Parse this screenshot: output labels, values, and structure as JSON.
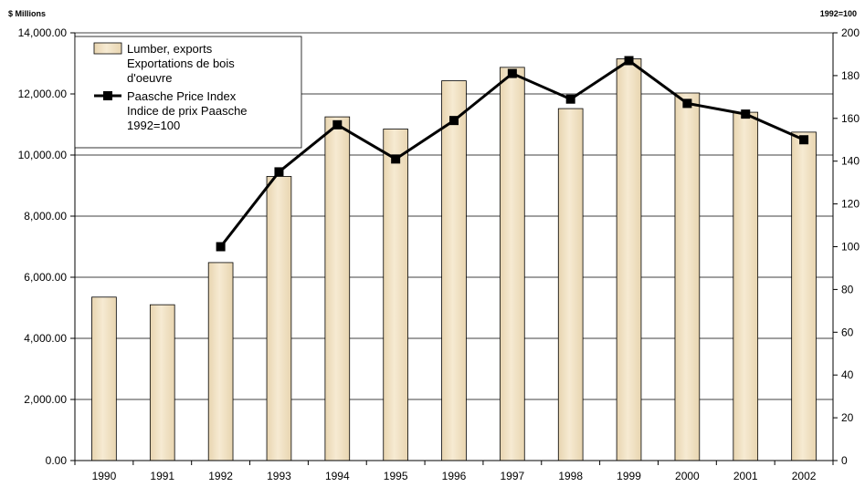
{
  "chart_data": {
    "type": "bar",
    "left_axis_title": "$ Millions",
    "right_axis_title": "1992=100",
    "categories": [
      "1990",
      "1991",
      "1992",
      "1993",
      "1994",
      "1995",
      "1996",
      "1997",
      "1998",
      "1999",
      "2000",
      "2001",
      "2002"
    ],
    "series": [
      {
        "name": [
          "Lumber, exports",
          "Exportations de bois",
          "d'oeuvre"
        ],
        "type": "bar",
        "axis": "left",
        "values": [
          5350,
          5100,
          6480,
          9300,
          11250,
          10850,
          12430,
          12870,
          11520,
          13150,
          12030,
          11400,
          10750
        ]
      },
      {
        "name": [
          "Paasche Price Index",
          "Indice de prix Paasche",
          "1992=100"
        ],
        "type": "line",
        "axis": "right",
        "values": [
          null,
          null,
          100,
          135,
          157,
          141,
          159,
          181,
          169,
          187,
          167,
          162,
          150
        ]
      }
    ],
    "left_axis": {
      "min": 0,
      "max": 14000,
      "step": 2000,
      "ticks": [
        "0.00",
        "2,000.00",
        "4,000.00",
        "6,000.00",
        "8,000.00",
        "10,000.00",
        "12,000.00",
        "14,000.00"
      ]
    },
    "right_axis": {
      "min": 0,
      "max": 200,
      "step": 20,
      "ticks": [
        "0",
        "20",
        "40",
        "60",
        "80",
        "100",
        "120",
        "140",
        "160",
        "180",
        "200"
      ]
    },
    "grid": true,
    "legend_position": "top-left",
    "colors": {
      "bar_fill": "#e8d5b0",
      "bar_light": "#f6ead2",
      "bar_stroke": "#000000",
      "line": "#000000",
      "grid": "#000000"
    }
  }
}
